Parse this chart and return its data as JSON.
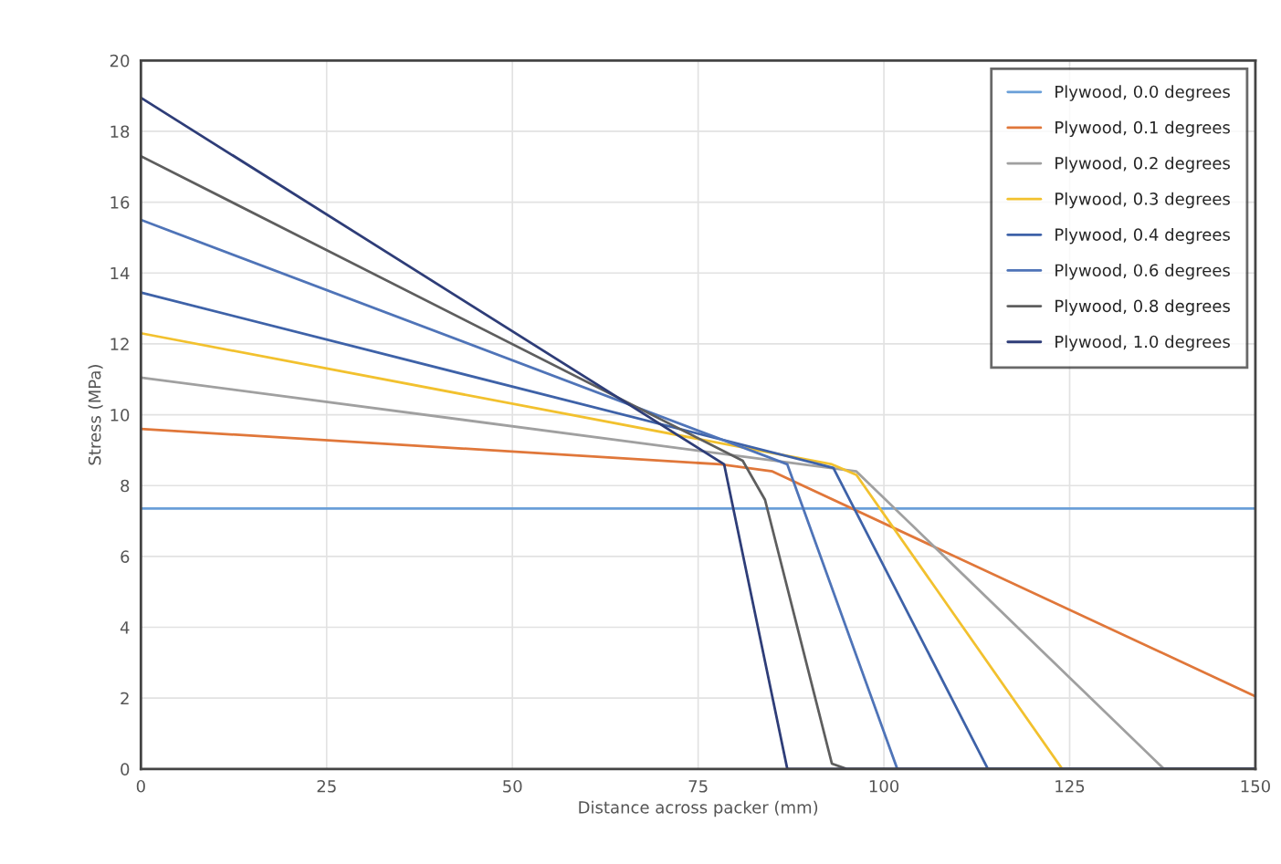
{
  "chart_data": {
    "type": "line",
    "xlabel": "Distance across packer (mm)",
    "ylabel": "Stress (MPa)",
    "xlim": [
      0,
      150
    ],
    "xticks": [
      0,
      25,
      50,
      75,
      100,
      125,
      150
    ],
    "ylim": [
      0,
      20
    ],
    "yticks": [
      0,
      2,
      4,
      6,
      8,
      10,
      12,
      14,
      16,
      18,
      20
    ],
    "grid": true,
    "legend": "top right",
    "marker": "none",
    "line_style": "solid",
    "series": [
      {
        "name": "Plywood, 0.0 degrees",
        "color": "#6a9fd8",
        "x": [
          0,
          150
        ],
        "values": [
          7.35,
          7.35
        ]
      },
      {
        "name": "Plywood, 0.1 degrees",
        "color": "#e0773a",
        "x": [
          0,
          78,
          85,
          150
        ],
        "values": [
          9.6,
          8.6,
          8.4,
          2.05
        ]
      },
      {
        "name": "Plywood, 0.2 degrees",
        "color": "#a0a0a0",
        "x": [
          0,
          96.3,
          137.7,
          150
        ],
        "values": [
          11.05,
          8.4,
          0,
          0
        ]
      },
      {
        "name": "Plywood, 0.3 degrees",
        "color": "#f2c12e",
        "x": [
          0,
          93,
          96.3,
          124,
          150
        ],
        "values": [
          12.3,
          8.6,
          8.3,
          0,
          0
        ]
      },
      {
        "name": "Plywood, 0.4 degrees",
        "color": "#3e62a8",
        "x": [
          0,
          93.2,
          114,
          150
        ],
        "values": [
          13.45,
          8.5,
          0,
          0
        ]
      },
      {
        "name": "Plywood, 0.6 degrees",
        "color": "#4f74b8",
        "x": [
          0,
          87,
          101.8,
          150
        ],
        "values": [
          15.5,
          8.6,
          0,
          0
        ]
      },
      {
        "name": "Plywood, 0.8 degrees",
        "color": "#5e5e5e",
        "x": [
          0,
          81,
          84,
          93,
          95,
          150
        ],
        "values": [
          17.3,
          8.7,
          7.6,
          0.15,
          0,
          0
        ]
      },
      {
        "name": "Plywood, 1.0 degrees",
        "color": "#2e3d78",
        "x": [
          0,
          78.5,
          87,
          150
        ],
        "values": [
          18.95,
          8.6,
          0,
          0
        ]
      }
    ]
  }
}
